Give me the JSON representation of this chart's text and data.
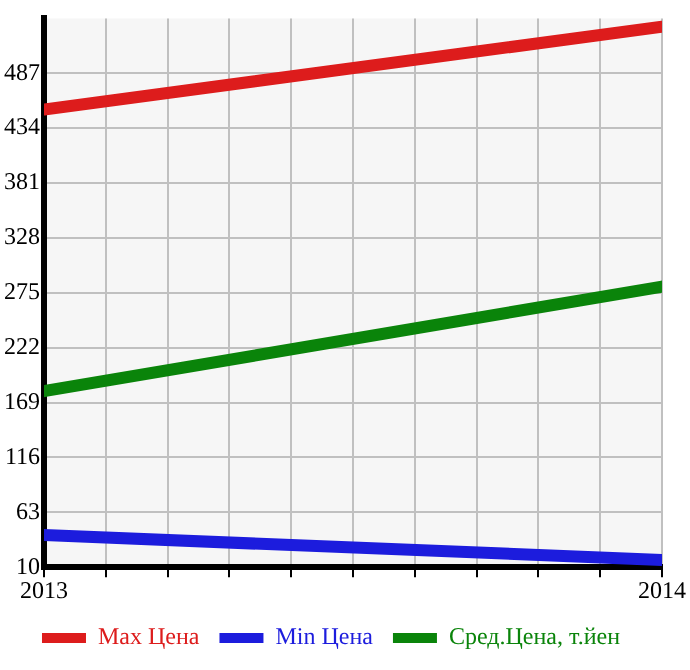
{
  "chart_data": {
    "type": "line",
    "x": [
      2013,
      2014
    ],
    "xlim": [
      2013,
      2014
    ],
    "xticks": [
      2013,
      {
        "value": 2013.1,
        "label": null
      },
      {
        "value": 2013.2,
        "label": null
      },
      {
        "value": 2013.3,
        "label": null
      },
      {
        "value": 2013.4,
        "label": null
      },
      {
        "value": 2013.5,
        "label": null
      },
      {
        "value": 2013.6,
        "label": null
      },
      {
        "value": 2013.7,
        "label": null
      },
      {
        "value": 2013.8,
        "label": null
      },
      {
        "value": 2013.9,
        "label": null
      },
      2014
    ],
    "ylim": [
      10,
      540
    ],
    "yticks": [
      10,
      63,
      116,
      169,
      222,
      275,
      328,
      381,
      434,
      487
    ],
    "series": [
      {
        "name": "Max Цена",
        "color": "#dd1c1c",
        "values": [
          452,
          532
        ]
      },
      {
        "name": "Min Цена",
        "color": "#1c1cdd",
        "values": [
          41,
          17
        ]
      },
      {
        "name": "Сред.Цена, т.йен",
        "color": "#0a840a",
        "values": [
          180,
          281
        ]
      }
    ],
    "grid": true,
    "legend": "bottom",
    "marker": "none",
    "line_style": "solid"
  }
}
